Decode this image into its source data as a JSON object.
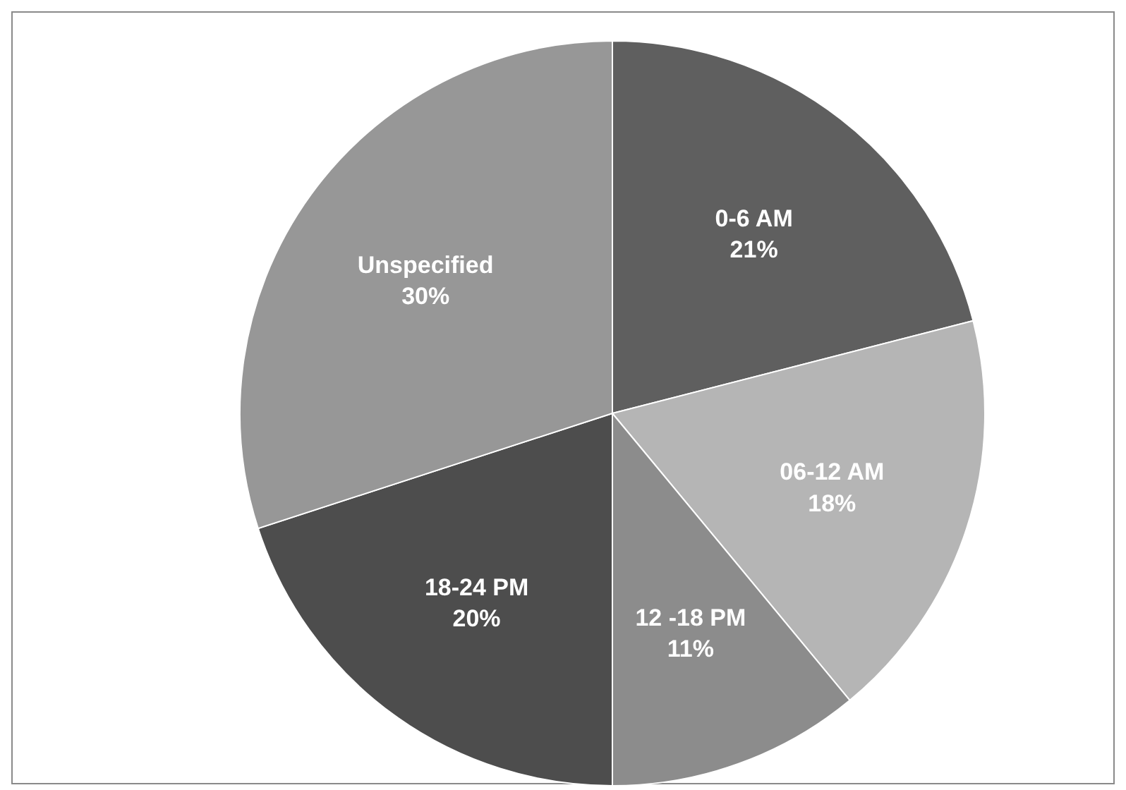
{
  "chart_data": {
    "type": "pie",
    "categories": [
      "0-6 AM",
      "06-12 AM",
      "12 -18 PM",
      "18-24 PM",
      "Unspecified"
    ],
    "values": [
      21,
      18,
      11,
      20,
      30
    ],
    "value_labels": [
      "21%",
      "18%",
      "11%",
      "20%",
      "30%"
    ],
    "colors": [
      "#5f5f5f",
      "#b5b5b5",
      "#8c8c8c",
      "#4d4d4d",
      "#979797"
    ],
    "data_labels": true,
    "legend": false
  }
}
